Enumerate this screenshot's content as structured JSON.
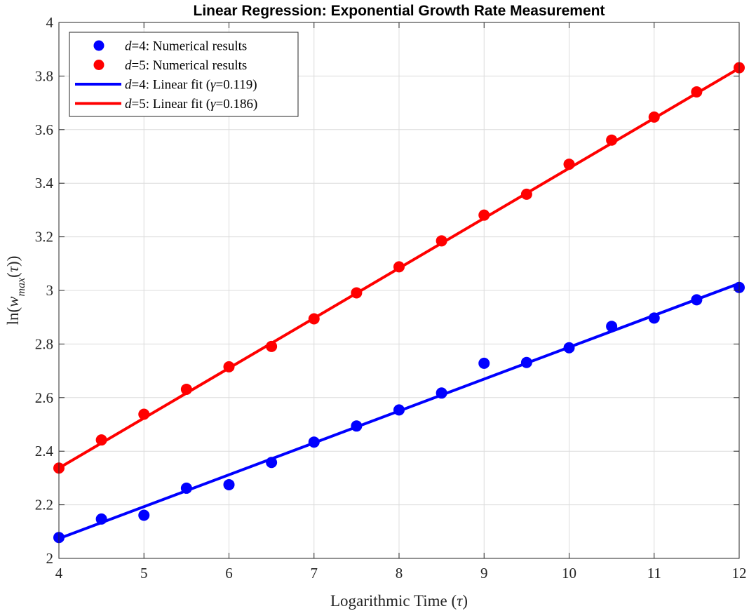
{
  "chart_data": {
    "type": "scatter",
    "title": "Linear Regression: Exponential Growth Rate Measurement",
    "xlabel": "Logarithmic Time (τ)",
    "ylabel": "ln(w_max(τ))",
    "xlim": [
      4,
      12
    ],
    "ylim": [
      2,
      4
    ],
    "xticks": [
      "4",
      "5",
      "6",
      "7",
      "8",
      "9",
      "10",
      "11",
      "12"
    ],
    "yticks": [
      "2",
      "2.2",
      "2.4",
      "2.6",
      "2.8",
      "3",
      "3.2",
      "3.4",
      "3.6",
      "3.8",
      "4"
    ],
    "grid": true,
    "legend_position": "top-left",
    "series": [
      {
        "name": "d=4: Numerical results",
        "kind": "scatter",
        "color": "#0000ff",
        "x": [
          4,
          4.5,
          5,
          5.5,
          6,
          6.5,
          7,
          7.5,
          8,
          8.5,
          9,
          9.5,
          10,
          10.5,
          11,
          11.5,
          12
        ],
        "y": [
          2.078,
          2.147,
          2.161,
          2.262,
          2.275,
          2.358,
          2.434,
          2.494,
          2.554,
          2.617,
          2.728,
          2.731,
          2.786,
          2.866,
          2.897,
          2.965,
          3.011
        ]
      },
      {
        "name": "d=5: Numerical results",
        "kind": "scatter",
        "color": "#ff0000",
        "x": [
          4,
          4.5,
          5,
          5.5,
          6,
          6.5,
          7,
          7.5,
          8,
          8.5,
          9,
          9.5,
          10,
          10.5,
          11,
          11.5,
          12
        ],
        "y": [
          2.337,
          2.442,
          2.538,
          2.631,
          2.715,
          2.791,
          2.894,
          2.991,
          3.088,
          3.185,
          3.281,
          3.359,
          3.471,
          3.561,
          3.647,
          3.741,
          3.831
        ]
      },
      {
        "name": "d=4: Linear fit (γ=0.119)",
        "kind": "line",
        "color": "#0000ff",
        "x": [
          4,
          12
        ],
        "y": [
          2.074,
          3.026
        ]
      },
      {
        "name": "d=5: Linear fit (γ=0.186)",
        "kind": "line",
        "color": "#ff0000",
        "x": [
          4,
          12
        ],
        "y": [
          2.337,
          3.829
        ]
      }
    ]
  }
}
